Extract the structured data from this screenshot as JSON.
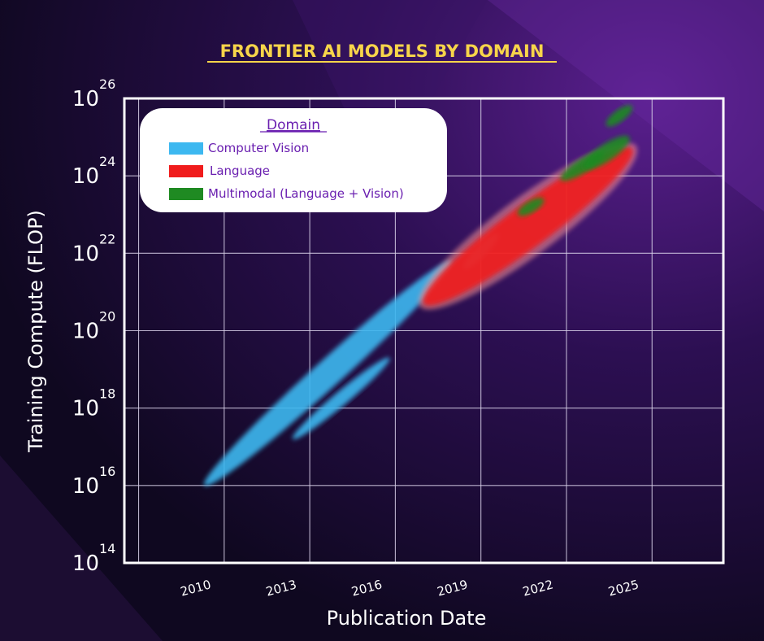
{
  "colors": {
    "background_dark": "#120a26",
    "background_purple": "#4a1a7a",
    "title": "#f7d54a",
    "plot_border": "#ffffff",
    "grid": "#d8d0e8",
    "axis_text": "#ffffff",
    "legend_bg": "#ffffff",
    "legend_text": "#6a1fb0",
    "computer_vision": "#3db8f0",
    "language": "#f01c1c",
    "multimodal": "#1f8a22"
  },
  "chart_data": {
    "type": "area",
    "title": "FRONTIER AI MODELS BY DOMAIN",
    "xlabel": "Publication Date",
    "ylabel": "Training Compute (FLOP)",
    "y_scale": "log",
    "xlim": [
      2007.5,
      2028.5
    ],
    "ylim_exponent": [
      14,
      26
    ],
    "x_ticks": [
      "2010",
      "2013",
      "2016",
      "2019",
      "2022",
      "2025"
    ],
    "y_ticks": [
      {
        "base": "10",
        "exp": "14"
      },
      {
        "base": "10",
        "exp": "16"
      },
      {
        "base": "10",
        "exp": "18"
      },
      {
        "base": "10",
        "exp": "20"
      },
      {
        "base": "10",
        "exp": "22"
      },
      {
        "base": "10",
        "exp": "24"
      },
      {
        "base": "10",
        "exp": "26"
      }
    ],
    "grid": true,
    "legend_title": "Domain",
    "legend_position": "top-left",
    "series": [
      {
        "name": "Computer Vision",
        "color": "#3db8f0",
        "bands": [
          {
            "x": [
              2010.3,
              2019.0
            ],
            "log10_flop": [
              16.0,
              21.8
            ],
            "width": 0.35
          },
          {
            "x": [
              2013.4,
              2016.8
            ],
            "log10_flop": [
              17.2,
              19.3
            ],
            "width": 0.18
          },
          {
            "x": [
              2019.4,
              2020.6
            ],
            "log10_flop": [
              21.6,
              22.5
            ],
            "width": 0.15
          }
        ]
      },
      {
        "name": "Language",
        "color": "#f01c1c",
        "bands": [
          {
            "x": [
              2018.0,
              2025.3
            ],
            "log10_flop": [
              20.7,
              24.7
            ],
            "width": 0.55
          }
        ]
      },
      {
        "name": "Multimodal (Language + Vision)",
        "color": "#1f8a22",
        "bands": [
          {
            "x": [
              2021.3,
              2022.2
            ],
            "log10_flop": [
              23.0,
              23.4
            ],
            "width": 0.15
          },
          {
            "x": [
              2022.8,
              2024.3
            ],
            "log10_flop": [
              23.9,
              24.6
            ],
            "width": 0.18
          },
          {
            "x": [
              2023.6,
              2025.2
            ],
            "log10_flop": [
              24.2,
              25.0
            ],
            "width": 0.22
          },
          {
            "x": [
              2024.4,
              2025.3
            ],
            "log10_flop": [
              25.3,
              25.8
            ],
            "width": 0.15
          }
        ]
      }
    ]
  }
}
